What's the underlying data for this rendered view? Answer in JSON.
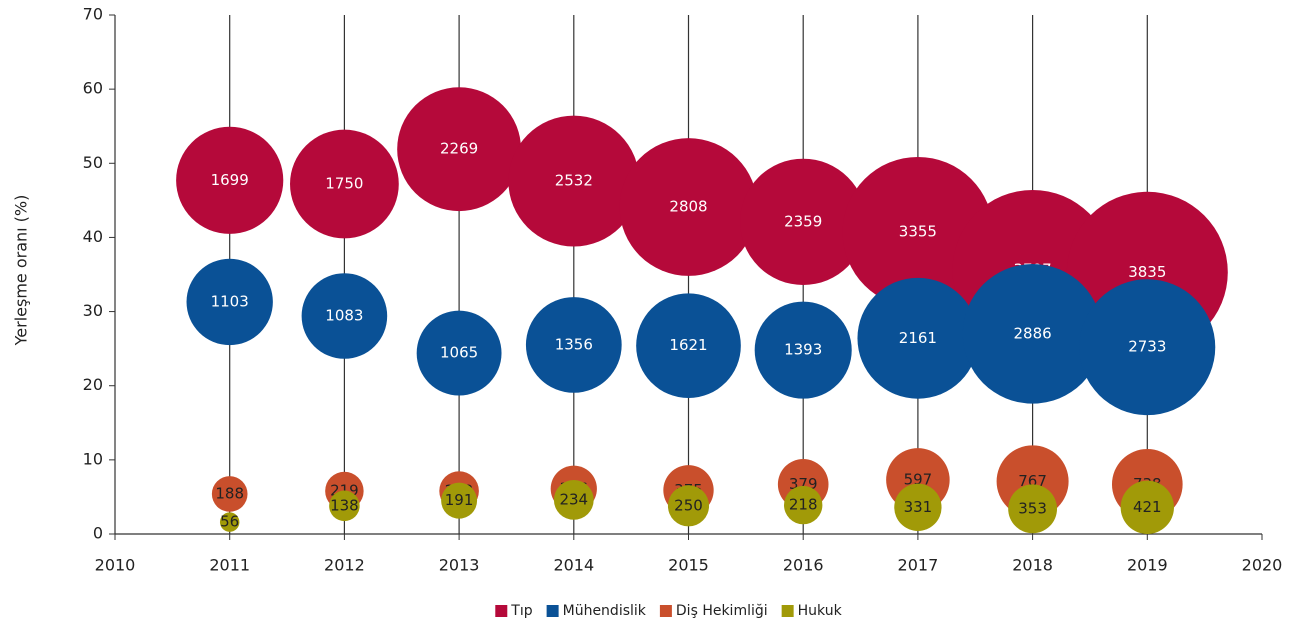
{
  "chart_data": {
    "type": "bubble",
    "ylabel": "Yerleşme oranı (%)",
    "xlim": [
      2010,
      2020
    ],
    "xticks": [
      2010,
      2011,
      2012,
      2013,
      2014,
      2015,
      2016,
      2017,
      2018,
      2019,
      2020
    ],
    "ylim": [
      0,
      70
    ],
    "yticks": [
      0,
      10,
      20,
      30,
      40,
      50,
      60,
      70
    ],
    "xgrid": true,
    "legend": "bottom",
    "x": [
      2011,
      2012,
      2013,
      2014,
      2015,
      2016,
      2017,
      2018,
      2019
    ],
    "series": [
      {
        "name": "Tıp",
        "color": "#b5093a",
        "label_color": "#ffffff",
        "values": [
          47.7,
          47.2,
          51.9,
          47.6,
          44.1,
          42.1,
          40.7,
          35.6,
          35.3
        ],
        "sizes": [
          1699,
          1750,
          2269,
          2532,
          2808,
          2359,
          3355,
          3797,
          3835
        ]
      },
      {
        "name": "Mühendislik",
        "color": "#0a5196",
        "label_color": "#ffffff",
        "values": [
          31.3,
          29.4,
          24.4,
          25.5,
          25.4,
          24.8,
          26.4,
          27.0,
          25.2
        ],
        "sizes": [
          1103,
          1083,
          1065,
          1356,
          1621,
          1393,
          2161,
          2886,
          2733
        ]
      },
      {
        "name": "Diş Hekimliği",
        "color": "#c94f2c",
        "label_color": "#222222",
        "values": [
          5.4,
          5.8,
          5.8,
          6.1,
          5.9,
          6.7,
          7.3,
          7.1,
          6.7
        ],
        "sizes": [
          188,
          219,
          232,
          316,
          375,
          379,
          597,
          767,
          738
        ]
      },
      {
        "name": "Hukuk",
        "color": "#a19a08",
        "label_color": "#222222",
        "values": [
          1.6,
          3.8,
          4.5,
          4.6,
          3.8,
          3.9,
          3.6,
          3.4,
          3.6
        ],
        "sizes": [
          56,
          138,
          191,
          234,
          250,
          218,
          331,
          353,
          421
        ]
      }
    ]
  }
}
